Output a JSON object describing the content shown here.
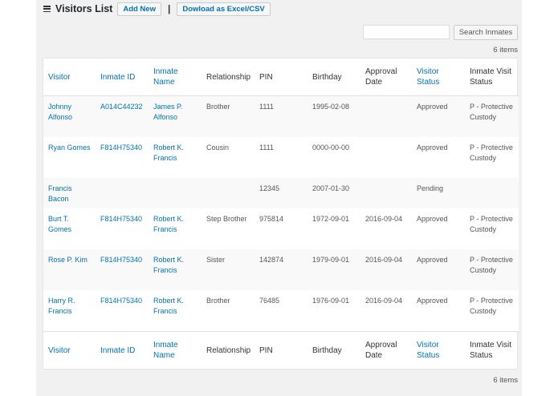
{
  "header": {
    "title": "Visitors List",
    "add_new_label": "Add New",
    "separator": "|",
    "download_label": "Dowload as Excel/CSV"
  },
  "search": {
    "value": "",
    "placeholder": "",
    "button_label": "Search Inmates"
  },
  "items_count": "6 items",
  "columns": [
    {
      "label": "Visitor",
      "sortable": true
    },
    {
      "label": "Inmate ID",
      "sortable": true
    },
    {
      "label": "Inmate Name",
      "sortable": true
    },
    {
      "label": "Relationship",
      "sortable": false
    },
    {
      "label": "PIN",
      "sortable": false
    },
    {
      "label": "Birthday",
      "sortable": false
    },
    {
      "label": "Approval Date",
      "sortable": false
    },
    {
      "label": "Visitor Status",
      "sortable": true
    },
    {
      "label": "Inmate Visit Status",
      "sortable": false
    }
  ],
  "rows": [
    {
      "visitor": "Johnny Alfonso",
      "inmate_id": "A014C44232",
      "inmate_name": "James P. Alfonso",
      "relationship": "Brother",
      "pin": "1111",
      "birthday": "1995-02-08",
      "approval_date": "",
      "visitor_status": "Approved",
      "visit_status": "P - Protective Custody"
    },
    {
      "visitor": "Ryan Gomes",
      "inmate_id": "F814H75340",
      "inmate_name": "Robert K. Francis",
      "relationship": "Cousin",
      "pin": "1111",
      "birthday": "0000-00-00",
      "approval_date": "",
      "visitor_status": "Approved",
      "visit_status": "P - Protective Custody"
    },
    {
      "visitor": "Francis Bacon",
      "inmate_id": "",
      "inmate_name": "",
      "relationship": "",
      "pin": "12345",
      "birthday": "2007-01-30",
      "approval_date": "",
      "visitor_status": "Pending",
      "visit_status": ""
    },
    {
      "visitor": "Burt T. Gomes",
      "inmate_id": "F814H75340",
      "inmate_name": "Robert K. Francis",
      "relationship": "Step Brother",
      "pin": "975814",
      "birthday": "1972-09-01",
      "approval_date": "2016-09-04",
      "visitor_status": "Approved",
      "visit_status": "P - Protective Custody"
    },
    {
      "visitor": "Rose P. Kim",
      "inmate_id": "F814H75340",
      "inmate_name": "Robert K. Francis",
      "relationship": "Sister",
      "pin": "142874",
      "birthday": "1979-09-01",
      "approval_date": "2016-09-04",
      "visitor_status": "Approved",
      "visit_status": "P - Protective Custody"
    },
    {
      "visitor": "Harry R. Francis",
      "inmate_id": "F814H75340",
      "inmate_name": "Robert K. Francis",
      "relationship": "Brother",
      "pin": "76485",
      "birthday": "1976-09-01",
      "approval_date": "2016-09-04",
      "visitor_status": "Approved",
      "visit_status": "P - Protective Custody"
    }
  ]
}
